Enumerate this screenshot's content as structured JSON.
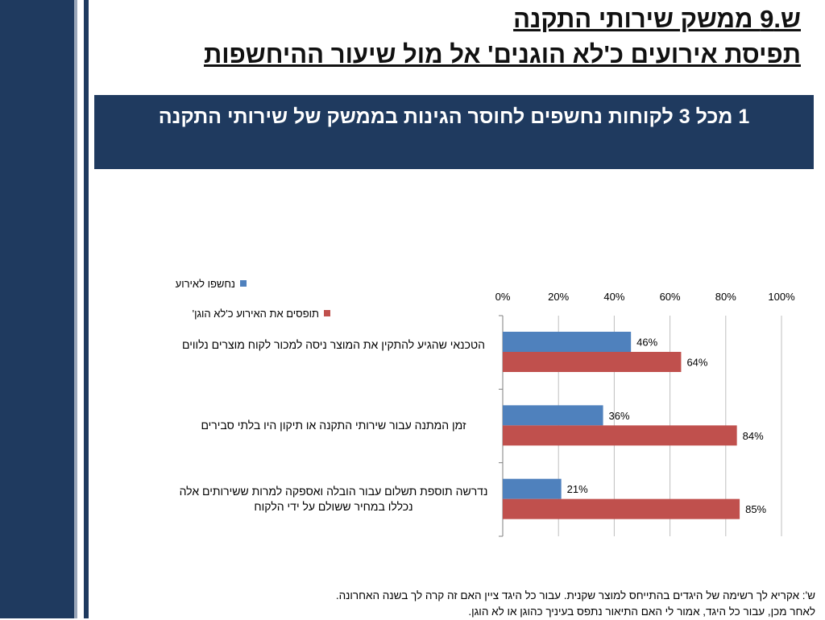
{
  "title": {
    "line1": "ש.9 ממשק שירותי התקנה",
    "line2": "תפיסת אירועים כ'לא הוגנים' אל מול שיעור ההיחשפות"
  },
  "banner": "1 מכל 3 לקוחות נחשפים לחוסר הגינות בממשק של שירותי התקנה",
  "chart_data": {
    "type": "bar",
    "orientation": "horizontal",
    "categories": [
      "הטכנאי שהגיע להתקין את המוצר ניסה למכור לקוח מוצרים נלווים",
      "זמן המתנה עבור שירותי התקנה או תיקון היו בלתי סבירים",
      "נדרשה תוספת תשלום עבור הובלה ואספקה למרות ששירותים אלה נכללו במחיר ששולם על ידי הלקוח"
    ],
    "series": [
      {
        "name": "נחשפו לאירוע",
        "color": "#4f81bd",
        "values": [
          46,
          36,
          21
        ],
        "labels": [
          "46%",
          "36%",
          "21%"
        ]
      },
      {
        "name": "תופסים את האירוע כ'לא הוגן'",
        "color": "#c0504d",
        "values": [
          64,
          84,
          85
        ],
        "labels": [
          "64%",
          "84%",
          "85%"
        ]
      }
    ],
    "xlim": [
      0,
      100
    ],
    "ticks": [
      "0%",
      "20%",
      "40%",
      "60%",
      "80%",
      "100%"
    ],
    "grid": true,
    "legend": "top-left"
  },
  "footnote": {
    "line1": "ש': אקריא לך רשימה של היגדים בהתייחס למוצר שקנית.  עבור כל היגד ציין האם זה קרה לך בשנה האחרונה.",
    "line2": "לאחר מכן, עבור כל היגד, אמור לי האם התיאור נתפס בעיניך כהוגן או לא הוגן."
  }
}
